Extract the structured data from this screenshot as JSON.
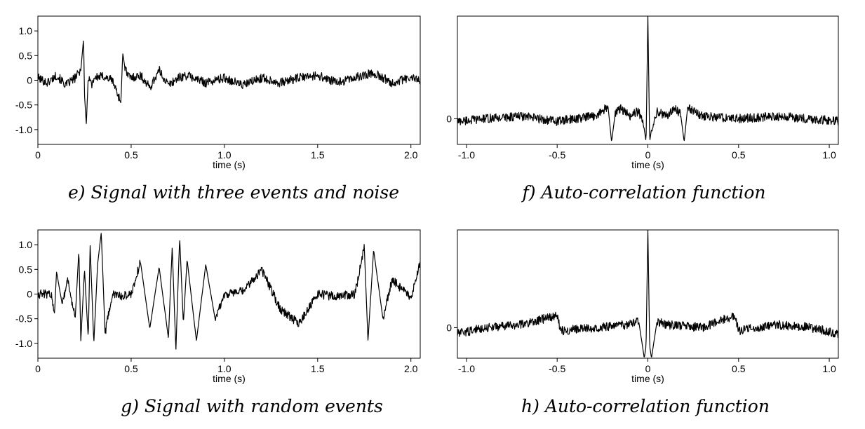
{
  "chart_data": [
    {
      "id": "e",
      "type": "line",
      "caption": "e) Signal with three events and noise",
      "xlabel": "time (s)",
      "ylabel": "",
      "xlim": [
        0,
        2.05
      ],
      "ylim": [
        -1.3,
        1.3
      ],
      "xticks": [
        0,
        0.5,
        1.0,
        1.5,
        2.0
      ],
      "xtick_labels": [
        "0",
        "0.5",
        "1.0",
        "1.5",
        "2.0"
      ],
      "yticks": [
        1.0,
        0.5,
        0,
        -0.5,
        -1.0
      ],
      "ytick_labels": [
        "1.0",
        "0.5",
        "0",
        "-0.5",
        "-1.0"
      ],
      "grid": false,
      "series": [
        {
          "x": [
            0,
            0.05,
            0.1,
            0.15,
            0.2,
            0.23,
            0.245,
            0.25,
            0.26,
            0.27,
            0.29,
            0.3,
            0.35,
            0.4,
            0.43,
            0.445,
            0.455,
            0.465,
            0.48,
            0.5,
            0.55,
            0.6,
            0.65,
            0.7,
            0.75,
            0.8,
            0.9,
            1.0,
            1.1,
            1.2,
            1.3,
            1.4,
            1.5,
            1.6,
            1.7,
            1.8,
            1.9,
            2.0,
            2.05
          ],
          "y": [
            0.05,
            -0.05,
            0.1,
            -0.1,
            0.05,
            0.2,
            0.85,
            -0.3,
            -0.9,
            0.1,
            -0.1,
            0.05,
            0.08,
            0.0,
            -0.3,
            -0.45,
            0.55,
            0.3,
            0.1,
            0.05,
            0.1,
            -0.15,
            0.2,
            -0.1,
            0.05,
            0.1,
            -0.05,
            0.05,
            -0.1,
            0.05,
            -0.05,
            0.05,
            0.1,
            -0.05,
            0.05,
            0.15,
            -0.05,
            0.05,
            0.0
          ]
        }
      ]
    },
    {
      "id": "f",
      "type": "line",
      "caption": "f) Auto-correlation function",
      "xlabel": "time (s)",
      "ylabel": "",
      "xlim": [
        -1.05,
        1.05
      ],
      "ylim": [
        -0.5,
        2.0
      ],
      "xticks": [
        -1.0,
        -0.5,
        0,
        0.5,
        1.0
      ],
      "xtick_labels": [
        "-1.0",
        "-0.5",
        "0",
        "0.5",
        "1.0"
      ],
      "yticks": [
        0
      ],
      "ytick_labels": [
        "0"
      ],
      "grid": false,
      "series": [
        {
          "x": [
            -1.05,
            -0.9,
            -0.7,
            -0.5,
            -0.3,
            -0.25,
            -0.22,
            -0.2,
            -0.18,
            -0.15,
            -0.1,
            -0.05,
            -0.02,
            -0.01,
            0,
            0.01,
            0.02,
            0.05,
            0.1,
            0.15,
            0.18,
            0.2,
            0.22,
            0.25,
            0.3,
            0.5,
            0.7,
            0.9,
            1.05
          ],
          "y": [
            -0.05,
            0.0,
            0.05,
            -0.05,
            0.05,
            0.15,
            0.25,
            -0.45,
            0.1,
            0.2,
            0.05,
            0.15,
            -0.2,
            -0.45,
            2.0,
            -0.45,
            -0.2,
            0.15,
            0.05,
            0.2,
            0.1,
            -0.45,
            0.25,
            0.15,
            0.05,
            0.0,
            0.05,
            0.0,
            -0.05
          ]
        }
      ]
    },
    {
      "id": "g",
      "type": "line",
      "caption": "g) Signal with random events",
      "xlabel": "time (s)",
      "ylabel": "",
      "xlim": [
        0,
        2.05
      ],
      "ylim": [
        -1.3,
        1.3
      ],
      "xticks": [
        0,
        0.5,
        1.0,
        1.5,
        2.0
      ],
      "xtick_labels": [
        "0",
        "0.5",
        "1.0",
        "1.5",
        "2.0"
      ],
      "yticks": [
        1.0,
        0.5,
        0,
        -0.5,
        -1.0
      ],
      "ytick_labels": [
        "1.0",
        "0.5",
        "0",
        "-0.5",
        "-1.0"
      ],
      "grid": false,
      "series": [
        {
          "x": [
            0,
            0.07,
            0.09,
            0.1,
            0.13,
            0.16,
            0.2,
            0.22,
            0.23,
            0.25,
            0.27,
            0.28,
            0.3,
            0.32,
            0.34,
            0.36,
            0.4,
            0.45,
            0.5,
            0.55,
            0.6,
            0.65,
            0.7,
            0.72,
            0.74,
            0.76,
            0.78,
            0.8,
            0.85,
            0.9,
            0.95,
            1.0,
            1.1,
            1.2,
            1.3,
            1.4,
            1.5,
            1.6,
            1.7,
            1.75,
            1.77,
            1.8,
            1.85,
            1.9,
            2.0,
            2.05
          ],
          "y": [
            0.0,
            0.0,
            -0.35,
            0.45,
            -0.2,
            0.3,
            -0.5,
            0.9,
            -0.95,
            0.5,
            -0.9,
            1.0,
            -1.0,
            0.6,
            1.25,
            -0.8,
            0.0,
            -0.05,
            0.0,
            0.65,
            -0.7,
            0.55,
            -0.9,
            0.95,
            -1.15,
            1.15,
            -0.6,
            0.7,
            -0.95,
            0.6,
            -0.5,
            0.0,
            0.05,
            0.5,
            -0.3,
            -0.6,
            0.0,
            -0.05,
            0.0,
            0.95,
            -0.95,
            0.9,
            -0.5,
            0.3,
            -0.1,
            0.65
          ]
        }
      ]
    },
    {
      "id": "h",
      "type": "line",
      "caption": "h) Auto-correlation function",
      "xlabel": "time (s)",
      "ylabel": "",
      "xlim": [
        -1.05,
        1.05
      ],
      "ylim": [
        -0.5,
        1.6
      ],
      "xticks": [
        -1.0,
        -0.5,
        0,
        0.5,
        1.0
      ],
      "xtick_labels": [
        "-1.0",
        "-0.5",
        "0",
        "0.5",
        "1.0"
      ],
      "yticks": [
        0
      ],
      "ytick_labels": [
        "0"
      ],
      "grid": false,
      "series": [
        {
          "x": [
            -1.05,
            -0.9,
            -0.7,
            -0.5,
            -0.48,
            -0.3,
            -0.1,
            -0.05,
            -0.02,
            -0.01,
            0,
            0.01,
            0.02,
            0.05,
            0.1,
            0.3,
            0.48,
            0.5,
            0.7,
            0.9,
            1.05
          ],
          "y": [
            -0.1,
            0.0,
            0.05,
            0.2,
            -0.05,
            0.0,
            0.05,
            0.1,
            -0.5,
            -0.3,
            1.6,
            -0.3,
            -0.5,
            0.1,
            0.05,
            0.0,
            0.2,
            -0.05,
            0.05,
            0.0,
            -0.1
          ]
        }
      ]
    }
  ]
}
